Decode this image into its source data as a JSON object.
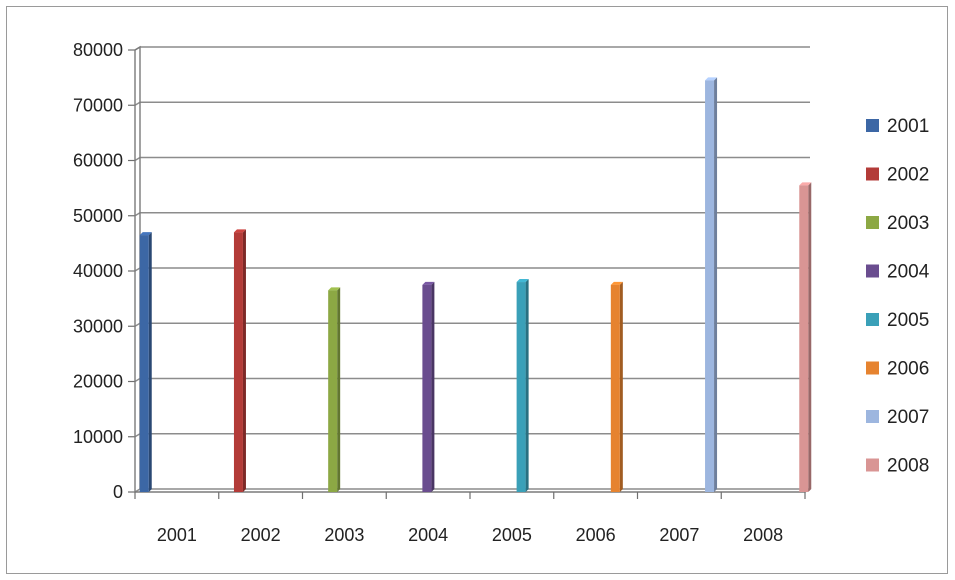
{
  "chart_data": {
    "type": "bar",
    "title": "",
    "xlabel": "",
    "ylabel": "",
    "categories": [
      "2001",
      "2002",
      "2003",
      "2004",
      "2005",
      "2006",
      "2007",
      "2008"
    ],
    "series": [
      {
        "name": "2001",
        "color": "#3c67a5",
        "values": [
          46500,
          null,
          null,
          null,
          null,
          null,
          null,
          null
        ]
      },
      {
        "name": "2002",
        "color": "#b33b38",
        "values": [
          null,
          47000,
          null,
          null,
          null,
          null,
          null,
          null
        ]
      },
      {
        "name": "2003",
        "color": "#8ca844",
        "values": [
          null,
          null,
          36500,
          null,
          null,
          null,
          null,
          null
        ]
      },
      {
        "name": "2004",
        "color": "#6a4d8f",
        "values": [
          null,
          null,
          null,
          37500,
          null,
          null,
          null,
          null
        ]
      },
      {
        "name": "2005",
        "color": "#3aa0b8",
        "values": [
          null,
          null,
          null,
          null,
          38000,
          null,
          null,
          null
        ]
      },
      {
        "name": "2006",
        "color": "#e6832f",
        "values": [
          null,
          null,
          null,
          null,
          null,
          37500,
          null,
          null
        ]
      },
      {
        "name": "2007",
        "color": "#9db6df",
        "values": [
          null,
          null,
          null,
          null,
          null,
          null,
          74500,
          null
        ]
      },
      {
        "name": "2008",
        "color": "#d99594",
        "values": [
          null,
          null,
          null,
          null,
          null,
          null,
          null,
          55500
        ]
      }
    ],
    "ylim": [
      0,
      80000
    ],
    "yticks": [
      "0",
      "10000",
      "20000",
      "30000",
      "40000",
      "50000",
      "60000",
      "70000",
      "80000"
    ],
    "grid": true,
    "legend_position": "right"
  }
}
